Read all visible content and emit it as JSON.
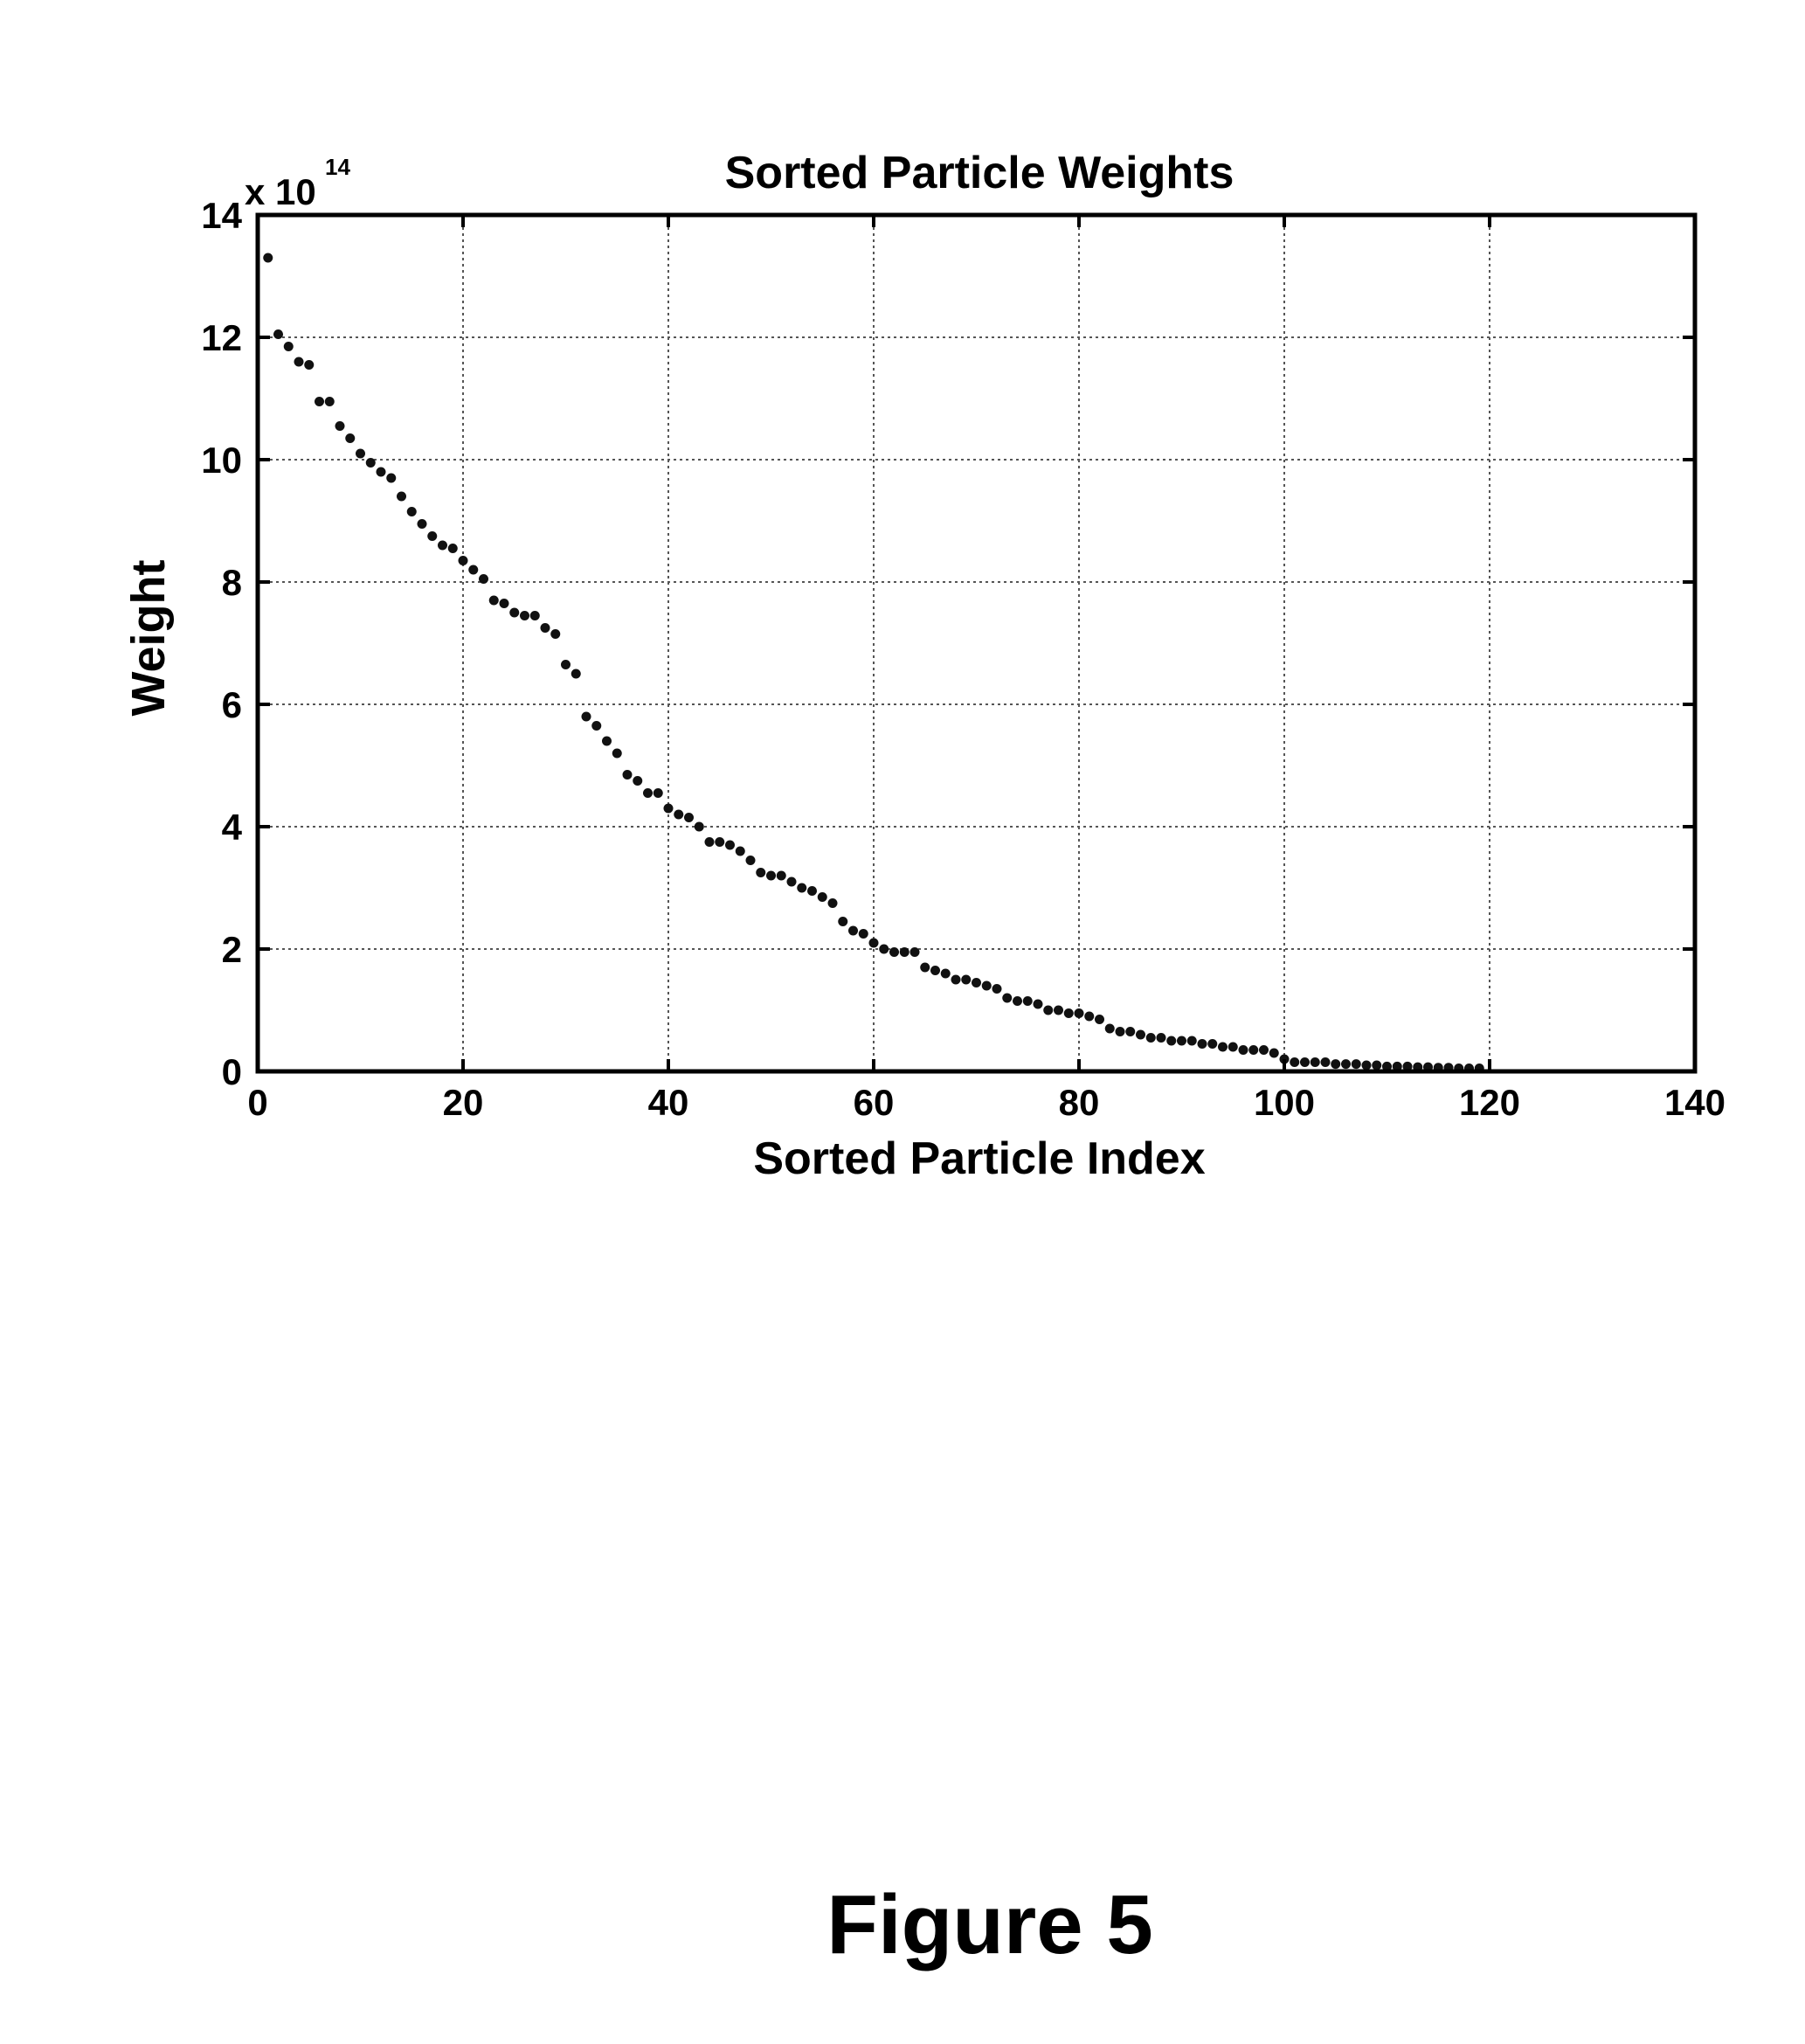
{
  "chart_data": {
    "type": "scatter",
    "title": "Sorted Particle Weights",
    "xlabel": "Sorted Particle Index",
    "ylabel": "Weight",
    "y_multiplier_label": "x 10",
    "y_multiplier_exponent": "14",
    "xlim": [
      0,
      140
    ],
    "ylim": [
      0,
      14
    ],
    "x_ticks": [
      0,
      20,
      40,
      60,
      80,
      100,
      120,
      140
    ],
    "y_ticks": [
      0,
      2,
      4,
      6,
      8,
      10,
      12,
      14
    ],
    "grid": true,
    "marker_color": "#111111",
    "series": [
      {
        "x": [
          1,
          2,
          3,
          4,
          5,
          6,
          7,
          8,
          9,
          10,
          11,
          12,
          13,
          14,
          15,
          16,
          17,
          18,
          19,
          20,
          21,
          22,
          23,
          24,
          25,
          26,
          27,
          28,
          29,
          30,
          31,
          32,
          33,
          34,
          35,
          36,
          37,
          38,
          39,
          40,
          41,
          42,
          43,
          44,
          45,
          46,
          47,
          48,
          49,
          50,
          51,
          52,
          53,
          54,
          55,
          56,
          57,
          58,
          59,
          60,
          61,
          62,
          63,
          64,
          65,
          66,
          67,
          68,
          69,
          70,
          71,
          72,
          73,
          74,
          75,
          76,
          77,
          78,
          79,
          80,
          81,
          82,
          83,
          84,
          85,
          86,
          87,
          88,
          89,
          90,
          91,
          92,
          93,
          94,
          95,
          96,
          97,
          98,
          99,
          100,
          101,
          102,
          103,
          104,
          105,
          106,
          107,
          108,
          109,
          110,
          111,
          112,
          113,
          114,
          115,
          116,
          117,
          118,
          119
        ],
        "y": [
          13.3,
          12.05,
          11.85,
          11.6,
          11.55,
          10.95,
          10.95,
          10.55,
          10.35,
          10.1,
          9.95,
          9.8,
          9.7,
          9.4,
          9.15,
          8.95,
          8.75,
          8.6,
          8.55,
          8.35,
          8.2,
          8.05,
          7.7,
          7.65,
          7.5,
          7.45,
          7.45,
          7.25,
          7.15,
          6.65,
          6.5,
          5.8,
          5.65,
          5.4,
          5.2,
          4.85,
          4.75,
          4.55,
          4.55,
          4.3,
          4.2,
          4.15,
          4.0,
          3.75,
          3.75,
          3.7,
          3.6,
          3.45,
          3.25,
          3.2,
          3.2,
          3.1,
          3.0,
          2.95,
          2.85,
          2.75,
          2.45,
          2.3,
          2.25,
          2.1,
          2.0,
          1.95,
          1.95,
          1.95,
          1.7,
          1.65,
          1.6,
          1.5,
          1.5,
          1.45,
          1.4,
          1.35,
          1.2,
          1.15,
          1.15,
          1.1,
          1.0,
          1.0,
          0.95,
          0.95,
          0.9,
          0.85,
          0.7,
          0.65,
          0.65,
          0.6,
          0.55,
          0.55,
          0.5,
          0.5,
          0.5,
          0.45,
          0.45,
          0.4,
          0.4,
          0.35,
          0.35,
          0.35,
          0.3,
          0.2,
          0.15,
          0.15,
          0.15,
          0.15,
          0.12,
          0.12,
          0.12,
          0.1,
          0.1,
          0.08,
          0.08,
          0.08,
          0.07,
          0.07,
          0.06,
          0.06,
          0.05,
          0.05,
          0.05
        ]
      }
    ]
  },
  "caption": "Figure 5"
}
